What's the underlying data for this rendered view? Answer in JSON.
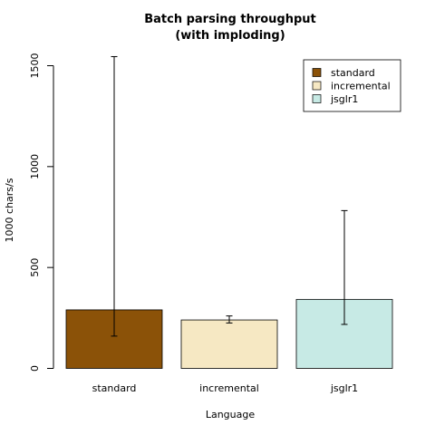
{
  "chart_data": {
    "type": "bar",
    "title_lines": [
      "Batch parsing throughput",
      "(with imploding)"
    ],
    "xlabel": "Language",
    "ylabel": "1000 chars/s",
    "ylim": [
      0,
      1500
    ],
    "yticks": [
      0,
      500,
      1000,
      1500
    ],
    "categories": [
      "standard",
      "incremental",
      "jsglr1"
    ],
    "values": [
      290,
      240,
      342
    ],
    "error_low": [
      160,
      225,
      218
    ],
    "error_high": [
      1545,
      260,
      782
    ],
    "colors": [
      "#8B5208",
      "#F6E8C3",
      "#C7EAE5"
    ],
    "legend": {
      "position": "top-right",
      "entries": [
        "standard",
        "incremental",
        "jsglr1"
      ]
    },
    "grid": false
  }
}
